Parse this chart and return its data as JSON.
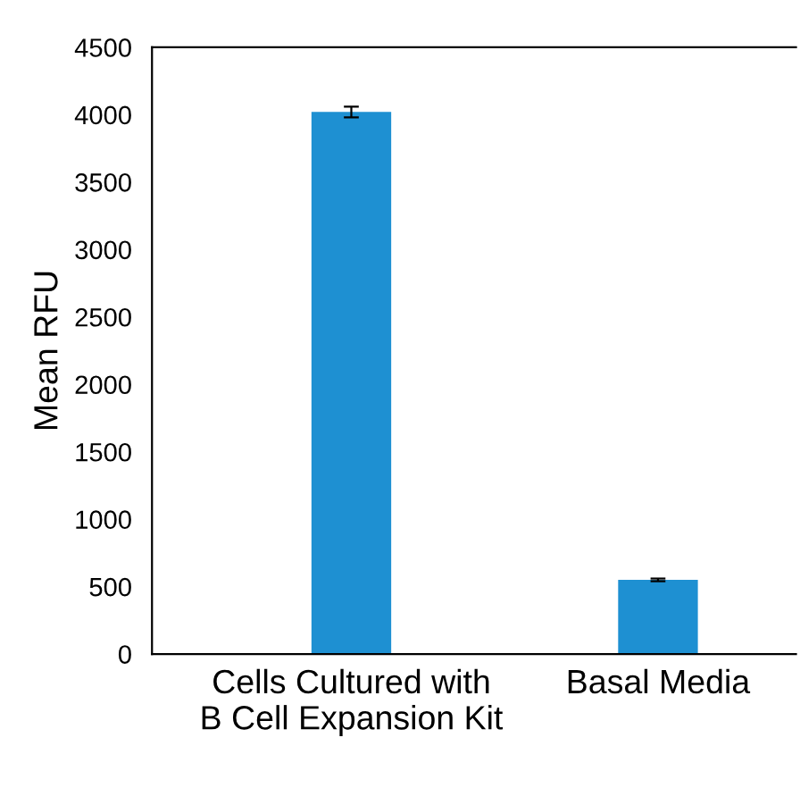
{
  "chart_data": {
    "type": "bar",
    "ylabel": "Mean RFU",
    "categories": [
      "Cells Cultured with\nB Cell Expansion Kit",
      "Basal Media"
    ],
    "values": [
      4020,
      550
    ],
    "errors": [
      40,
      10
    ],
    "color": "#1e90d2",
    "ylim": [
      0,
      4500
    ],
    "yticks": [
      0,
      500,
      1000,
      1500,
      2000,
      2500,
      3000,
      3500,
      4000,
      4500
    ],
    "grid": false
  }
}
